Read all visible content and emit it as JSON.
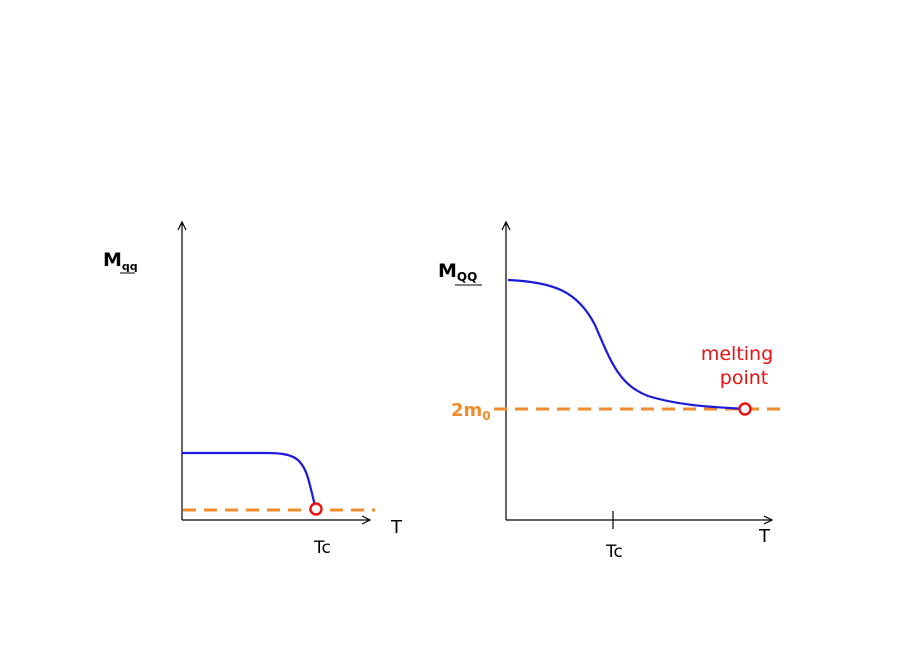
{
  "left_plot": {
    "y_label_main": "M",
    "y_label_sub": "qq",
    "x_label": "T",
    "tc_label": "Tc"
  },
  "right_plot": {
    "y_label_main": "M",
    "y_label_sub": "QQ",
    "x_label": "T",
    "tc_label": "Tc",
    "threshold_label_main": "2m",
    "threshold_label_sub": "0",
    "annotation_line1": "melting",
    "annotation_line2": "point"
  },
  "colors": {
    "axis": "#000000",
    "curve": "#1a1adb",
    "threshold": "#f08c2c",
    "marker": "#ee1111",
    "annotation": "#ee1111",
    "threshold_label": "#f08c2c"
  }
}
